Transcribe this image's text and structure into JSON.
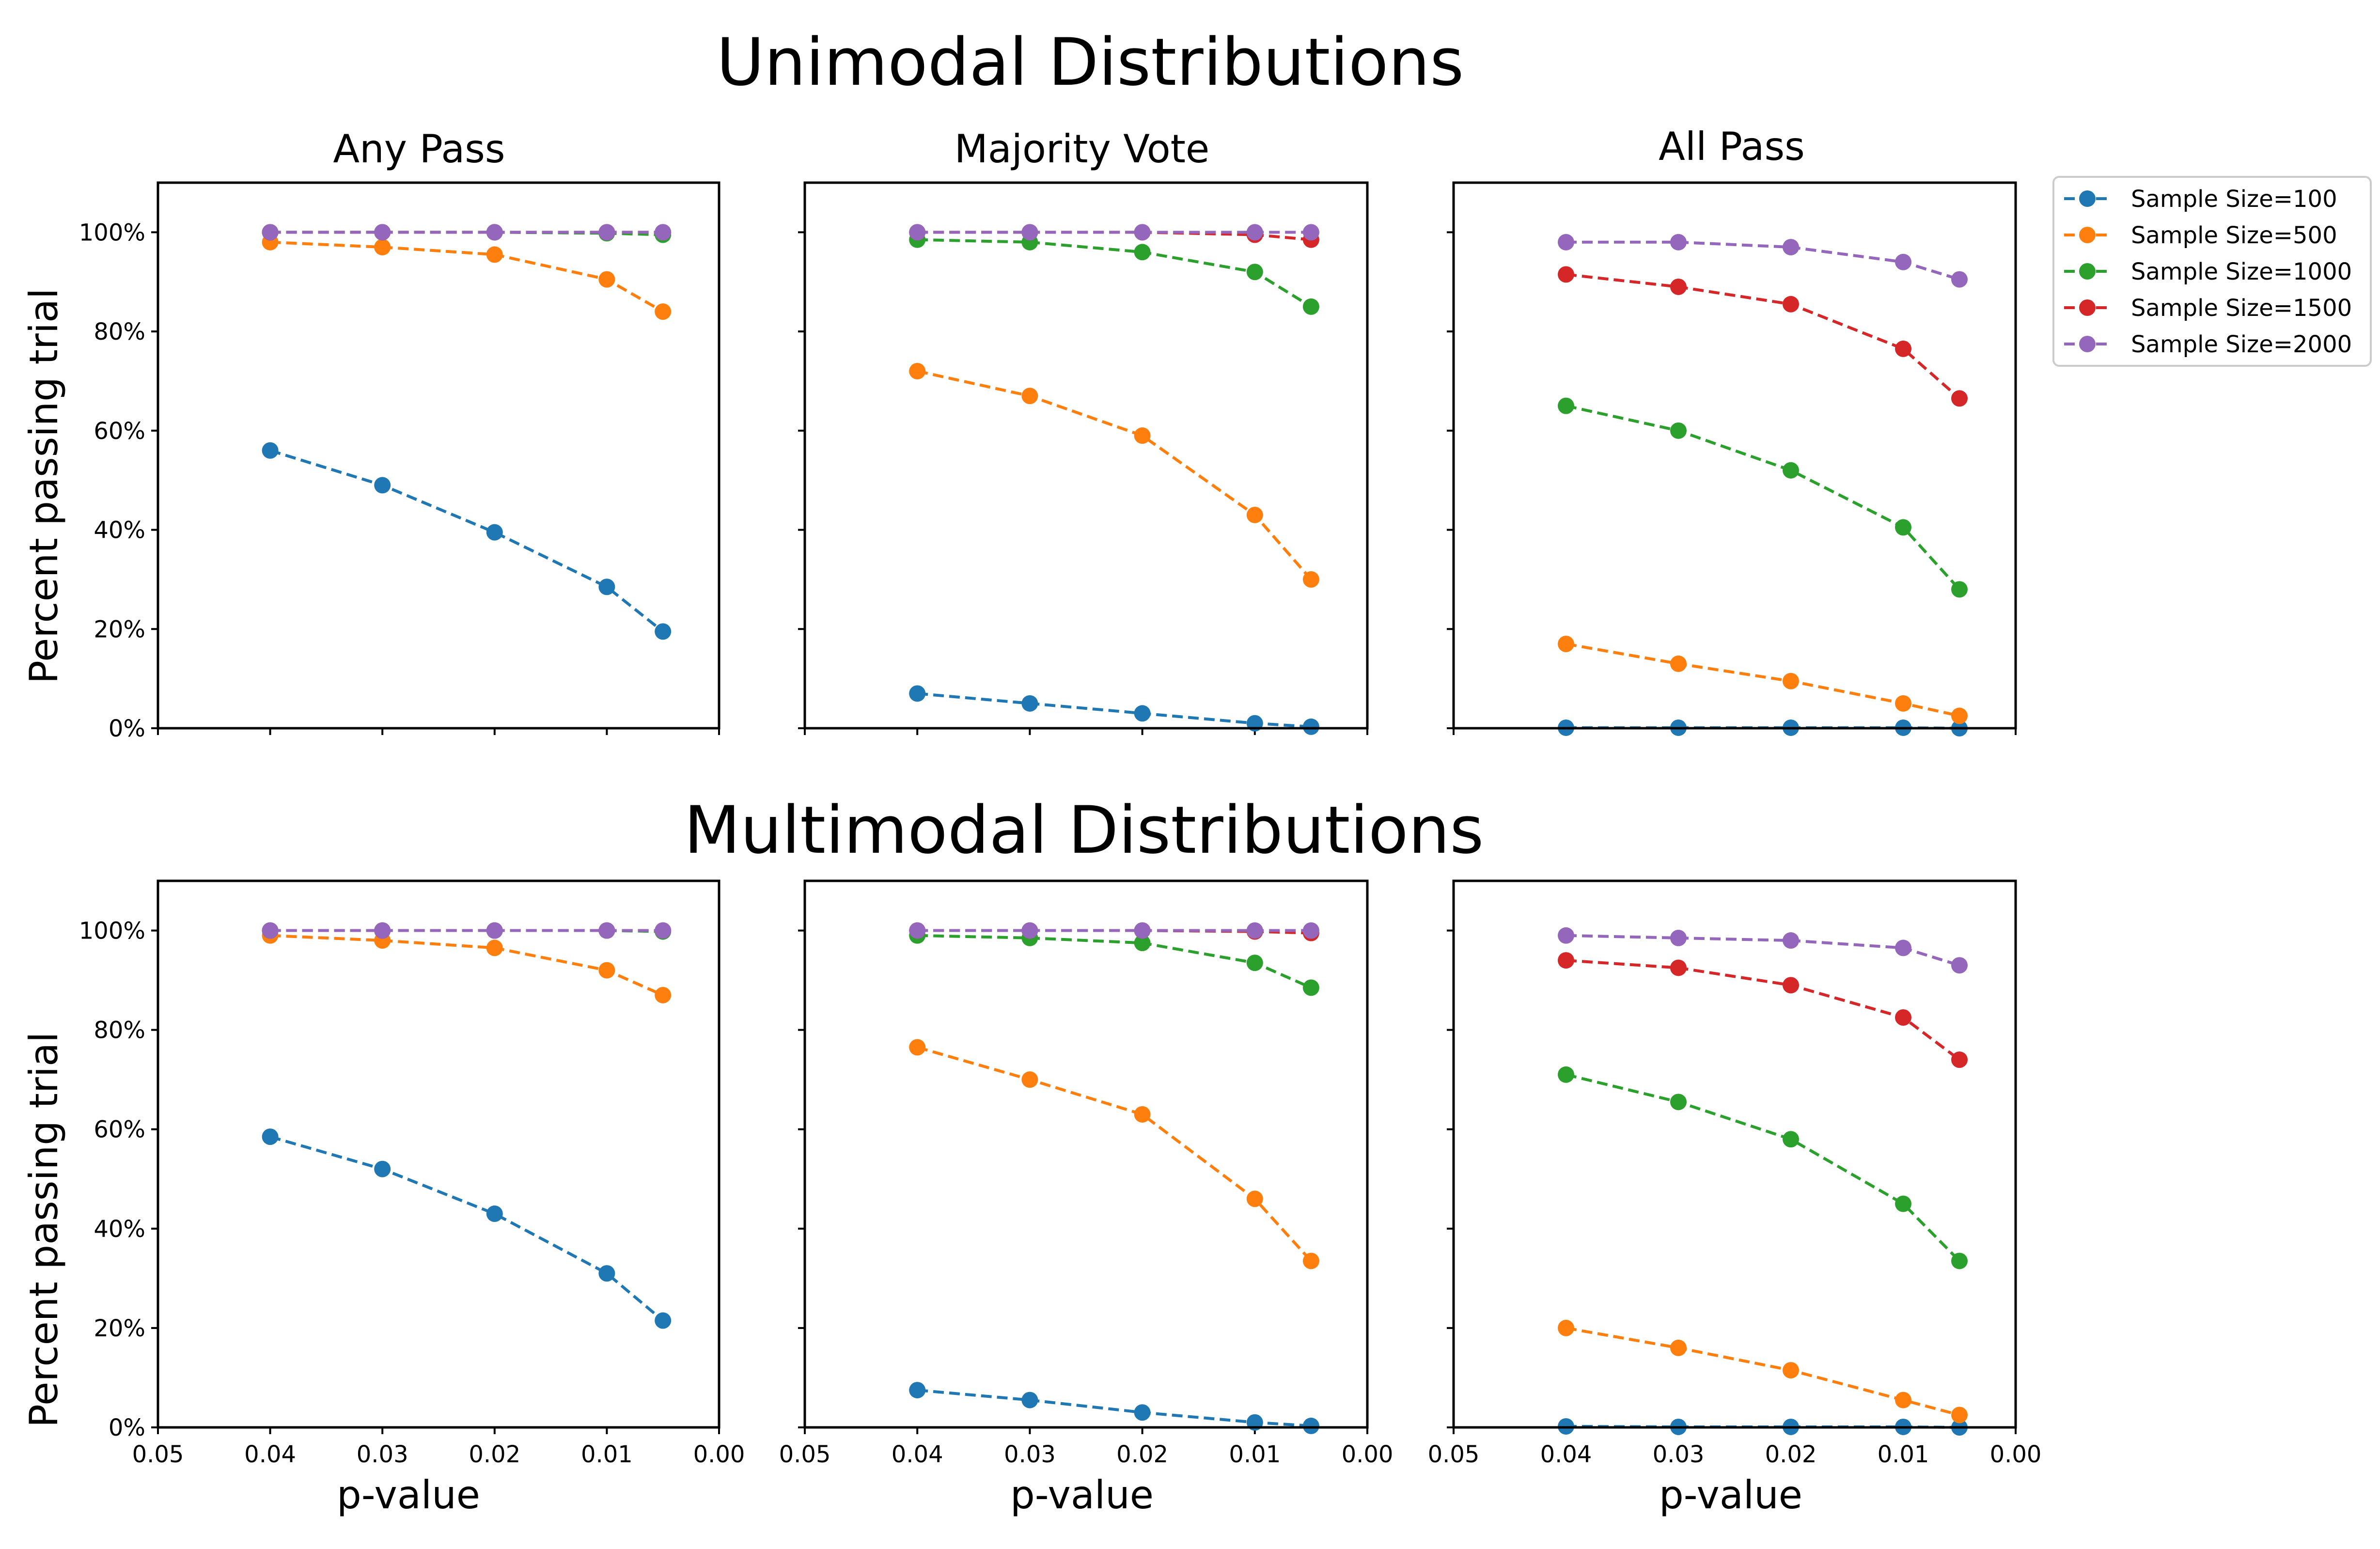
{
  "rows": [
    {
      "title": "Unimodal Distributions"
    },
    {
      "title": "Multimodal Distributions"
    }
  ],
  "columns": [
    {
      "title": "Any Pass"
    },
    {
      "title": "Majority Vote"
    },
    {
      "title": "All Pass"
    }
  ],
  "xlabel": "p-value",
  "ylabel": "Percent passing trial",
  "x_ticks": [
    "0.05",
    "0.04",
    "0.03",
    "0.02",
    "0.01",
    "0.00"
  ],
  "y_ticks": [
    "0%",
    "20%",
    "40%",
    "60%",
    "80%",
    "100%"
  ],
  "legend": {
    "placement": "right",
    "entries": [
      {
        "label": "Sample Size=100",
        "color": "#1f77b4"
      },
      {
        "label": "Sample Size=500",
        "color": "#ff7f0e"
      },
      {
        "label": "Sample Size=1000",
        "color": "#2ca02c"
      },
      {
        "label": "Sample Size=1500",
        "color": "#d62728"
      },
      {
        "label": "Sample Size=2000",
        "color": "#9467bd"
      }
    ]
  },
  "chart_data": [
    {
      "type": "line",
      "row": 0,
      "col": 0,
      "title": "Any Pass",
      "xlabel": "",
      "ylabel": "Percent passing trial",
      "x": [
        0.04,
        0.03,
        0.02,
        0.01,
        0.005
      ],
      "xlim": [
        0.05,
        0.0
      ],
      "ylim": [
        0,
        110
      ],
      "x_inverted": true,
      "series": [
        {
          "name": "Sample Size=100",
          "values": [
            56,
            49,
            39.5,
            28.5,
            19.5
          ]
        },
        {
          "name": "Sample Size=500",
          "values": [
            98,
            97,
            95.5,
            90.5,
            84
          ]
        },
        {
          "name": "Sample Size=1000",
          "values": [
            100,
            100,
            100,
            99.8,
            99.5
          ]
        },
        {
          "name": "Sample Size=1500",
          "values": [
            100,
            100,
            100,
            100,
            100
          ]
        },
        {
          "name": "Sample Size=2000",
          "values": [
            100,
            100,
            100,
            100,
            100
          ]
        }
      ]
    },
    {
      "type": "line",
      "row": 0,
      "col": 1,
      "title": "Majority Vote",
      "xlabel": "",
      "ylabel": "",
      "x": [
        0.04,
        0.03,
        0.02,
        0.01,
        0.005
      ],
      "xlim": [
        0.05,
        0.0
      ],
      "ylim": [
        0,
        110
      ],
      "x_inverted": true,
      "series": [
        {
          "name": "Sample Size=100",
          "values": [
            7,
            5,
            3,
            1,
            0.3
          ]
        },
        {
          "name": "Sample Size=500",
          "values": [
            72,
            67,
            59,
            43,
            30
          ]
        },
        {
          "name": "Sample Size=1000",
          "values": [
            98.5,
            98,
            96,
            92,
            85
          ]
        },
        {
          "name": "Sample Size=1500",
          "values": [
            100,
            100,
            100,
            99.5,
            98.5
          ]
        },
        {
          "name": "Sample Size=2000",
          "values": [
            100,
            100,
            100,
            100,
            100
          ]
        }
      ]
    },
    {
      "type": "line",
      "row": 0,
      "col": 2,
      "title": "All Pass",
      "xlabel": "",
      "ylabel": "",
      "x": [
        0.04,
        0.03,
        0.02,
        0.01,
        0.005
      ],
      "xlim": [
        0.05,
        0.0
      ],
      "ylim": [
        0,
        110
      ],
      "x_inverted": true,
      "series": [
        {
          "name": "Sample Size=100",
          "values": [
            0.1,
            0.1,
            0.1,
            0.1,
            0
          ]
        },
        {
          "name": "Sample Size=500",
          "values": [
            17,
            13,
            9.5,
            5,
            2.5
          ]
        },
        {
          "name": "Sample Size=1000",
          "values": [
            65,
            60,
            52,
            40.5,
            28
          ]
        },
        {
          "name": "Sample Size=1500",
          "values": [
            91.5,
            89,
            85.5,
            76.5,
            66.5
          ]
        },
        {
          "name": "Sample Size=2000",
          "values": [
            98,
            98,
            97,
            94,
            90.5
          ]
        }
      ]
    },
    {
      "type": "line",
      "row": 1,
      "col": 0,
      "title": "",
      "xlabel": "p-value",
      "ylabel": "Percent passing trial",
      "x": [
        0.04,
        0.03,
        0.02,
        0.01,
        0.005
      ],
      "xlim": [
        0.05,
        0.0
      ],
      "ylim": [
        0,
        110
      ],
      "x_inverted": true,
      "series": [
        {
          "name": "Sample Size=100",
          "values": [
            58.5,
            52,
            43,
            31,
            21.5
          ]
        },
        {
          "name": "Sample Size=500",
          "values": [
            99,
            98,
            96.5,
            92,
            87
          ]
        },
        {
          "name": "Sample Size=1000",
          "values": [
            100,
            100,
            100,
            100,
            99.8
          ]
        },
        {
          "name": "Sample Size=1500",
          "values": [
            100,
            100,
            100,
            100,
            100
          ]
        },
        {
          "name": "Sample Size=2000",
          "values": [
            100,
            100,
            100,
            100,
            100
          ]
        }
      ]
    },
    {
      "type": "line",
      "row": 1,
      "col": 1,
      "title": "",
      "xlabel": "p-value",
      "ylabel": "",
      "x": [
        0.04,
        0.03,
        0.02,
        0.01,
        0.005
      ],
      "xlim": [
        0.05,
        0.0
      ],
      "ylim": [
        0,
        110
      ],
      "x_inverted": true,
      "series": [
        {
          "name": "Sample Size=100",
          "values": [
            7.5,
            5.5,
            3,
            1,
            0.3
          ]
        },
        {
          "name": "Sample Size=500",
          "values": [
            76.5,
            70,
            63,
            46,
            33.5
          ]
        },
        {
          "name": "Sample Size=1000",
          "values": [
            99,
            98.5,
            97.5,
            93.5,
            88.5
          ]
        },
        {
          "name": "Sample Size=1500",
          "values": [
            100,
            100,
            100,
            99.8,
            99.5
          ]
        },
        {
          "name": "Sample Size=2000",
          "values": [
            100,
            100,
            100,
            100,
            100
          ]
        }
      ]
    },
    {
      "type": "line",
      "row": 1,
      "col": 2,
      "title": "",
      "xlabel": "p-value",
      "ylabel": "",
      "x": [
        0.04,
        0.03,
        0.02,
        0.01,
        0.005
      ],
      "xlim": [
        0.05,
        0.0
      ],
      "ylim": [
        0,
        110
      ],
      "x_inverted": true,
      "series": [
        {
          "name": "Sample Size=100",
          "values": [
            0.2,
            0.1,
            0.1,
            0.1,
            0
          ]
        },
        {
          "name": "Sample Size=500",
          "values": [
            20,
            16,
            11.5,
            5.5,
            2.5
          ]
        },
        {
          "name": "Sample Size=1000",
          "values": [
            71,
            65.5,
            58,
            45,
            33.5
          ]
        },
        {
          "name": "Sample Size=1500",
          "values": [
            94,
            92.5,
            89,
            82.5,
            74
          ]
        },
        {
          "name": "Sample Size=2000",
          "values": [
            99,
            98.5,
            98,
            96.5,
            93
          ]
        }
      ]
    }
  ]
}
